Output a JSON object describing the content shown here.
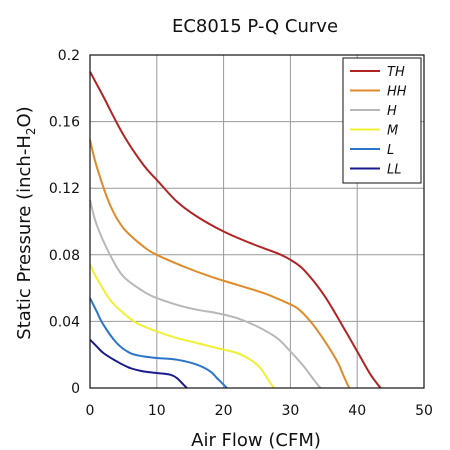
{
  "chart_data": {
    "type": "line",
    "title": "EC8015 P-Q Curve",
    "xlabel": "Air Flow (CFM)",
    "ylabel": {
      "main": "Static Pressure (inch-H",
      "sub": "2",
      "end": "O)"
    },
    "xlim": [
      0,
      50
    ],
    "ylim": [
      0,
      0.2
    ],
    "xticks": [
      0,
      10,
      20,
      30,
      40,
      50
    ],
    "xtick_labels": [
      "0",
      "10",
      "20",
      "30",
      "40",
      "50"
    ],
    "yticks": [
      0,
      0.04,
      0.08,
      0.12,
      0.16,
      0.2
    ],
    "ytick_labels": [
      "0",
      "0.04",
      "0.08",
      "0.12",
      "0.16",
      "0.2"
    ],
    "grid": true,
    "legend_position": "top-right",
    "series": [
      {
        "name": "TH",
        "color": "#b22424",
        "x": [
          0,
          2,
          5,
          8,
          10,
          13,
          16,
          20,
          24,
          28,
          30,
          32,
          35,
          38,
          40,
          42,
          43.5
        ],
        "y": [
          0.19,
          0.175,
          0.152,
          0.134,
          0.125,
          0.112,
          0.103,
          0.094,
          0.087,
          0.081,
          0.077,
          0.071,
          0.056,
          0.036,
          0.022,
          0.008,
          0
        ]
      },
      {
        "name": "HH",
        "color": "#e08a2a",
        "x": [
          0,
          1,
          3,
          5,
          8,
          10,
          14,
          18,
          22,
          26,
          29,
          31,
          33,
          35,
          37,
          38,
          38.8
        ],
        "y": [
          0.149,
          0.133,
          0.11,
          0.096,
          0.085,
          0.08,
          0.073,
          0.067,
          0.062,
          0.057,
          0.052,
          0.048,
          0.04,
          0.029,
          0.016,
          0.007,
          0
        ]
      },
      {
        "name": "H",
        "color": "#b8b8b8",
        "x": [
          0,
          1,
          3,
          5,
          8,
          10,
          13,
          16,
          19,
          22,
          25,
          28,
          30,
          32,
          33.5,
          34.5
        ],
        "y": [
          0.113,
          0.098,
          0.08,
          0.067,
          0.058,
          0.054,
          0.05,
          0.047,
          0.045,
          0.042,
          0.037,
          0.03,
          0.022,
          0.013,
          0.005,
          0
        ]
      },
      {
        "name": "M",
        "color": "#f0f036",
        "x": [
          0,
          1,
          3,
          5,
          7,
          10,
          13,
          16,
          19,
          22,
          24,
          25.5,
          26.5,
          27.5
        ],
        "y": [
          0.074,
          0.066,
          0.053,
          0.045,
          0.039,
          0.034,
          0.03,
          0.027,
          0.024,
          0.021,
          0.017,
          0.012,
          0.006,
          0
        ]
      },
      {
        "name": "L",
        "color": "#2a74c9",
        "x": [
          0,
          1,
          2,
          4,
          6,
          8,
          10,
          13,
          16,
          18,
          19,
          20,
          20.5
        ],
        "y": [
          0.054,
          0.046,
          0.038,
          0.027,
          0.021,
          0.019,
          0.018,
          0.017,
          0.014,
          0.01,
          0.006,
          0.002,
          0
        ]
      },
      {
        "name": "LL",
        "color": "#1a1a8c",
        "x": [
          0,
          1,
          2,
          4,
          6,
          8,
          10,
          12,
          13,
          14,
          14.5
        ],
        "y": [
          0.029,
          0.025,
          0.021,
          0.016,
          0.012,
          0.01,
          0.009,
          0.008,
          0.006,
          0.002,
          0
        ]
      }
    ]
  }
}
